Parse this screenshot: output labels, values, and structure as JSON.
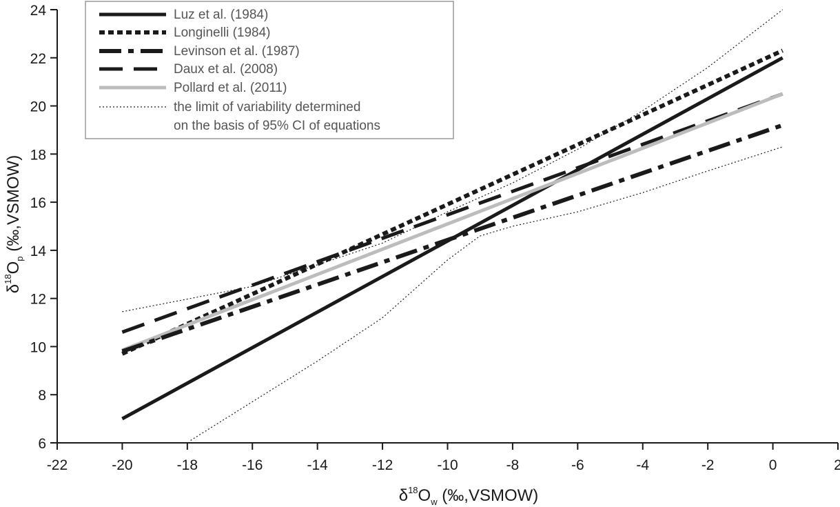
{
  "chart_data": {
    "type": "line",
    "title": "",
    "xlabel": {
      "main": "δ",
      "sup": "18",
      "base": "O",
      "sub": "w",
      "rest": " (‰,VSMOW)"
    },
    "ylabel": {
      "main": "δ",
      "sup": "18",
      "base": "O",
      "sub": "p",
      "rest": " (‰,VSMOW)"
    },
    "xlim": [
      -22,
      2
    ],
    "ylim": [
      6,
      24
    ],
    "xticks": [
      -22,
      -20,
      -18,
      -16,
      -14,
      -12,
      -10,
      -8,
      -6,
      -4,
      -2,
      0,
      2
    ],
    "yticks": [
      6,
      8,
      10,
      12,
      14,
      16,
      18,
      20,
      22,
      24
    ],
    "grid": false,
    "legend": "top-left",
    "series": [
      {
        "name": "Luz et al. (1984)",
        "style": "solid",
        "color": "#1a1a1a",
        "x": [
          -20,
          0.3
        ],
        "y": [
          7.0,
          22.0
        ]
      },
      {
        "name": "Longinelli (1984)",
        "style": "dotted",
        "color": "#1a1a1a",
        "x": [
          -20,
          0.3
        ],
        "y": [
          9.7,
          22.3
        ]
      },
      {
        "name": "Levinson et al. (1987)",
        "style": "dashdot",
        "color": "#1a1a1a",
        "x": [
          -20,
          0.3
        ],
        "y": [
          9.8,
          19.2
        ]
      },
      {
        "name": "Daux et al. (2008)",
        "style": "longdash",
        "color": "#1a1a1a",
        "x": [
          -20,
          0.3
        ],
        "y": [
          10.6,
          20.5
        ]
      },
      {
        "name": "Pollard et al. (2011)",
        "style": "solid-grey",
        "color": "#bcbcbc",
        "x": [
          -20,
          0.3
        ],
        "y": [
          9.85,
          20.5
        ]
      },
      {
        "name": "the limit of variability determined",
        "name_line2": "on the basis of 95% CI of equations",
        "style": "fine-dotted",
        "color": "#1a1a1a",
        "upper": {
          "x": [
            -20,
            -16,
            -12,
            -10,
            -8,
            -6,
            -4,
            -2,
            0.3
          ],
          "y": [
            11.45,
            12.5,
            14.3,
            15.6,
            16.8,
            18.2,
            19.8,
            21.6,
            24.0
          ]
        },
        "lower": {
          "x": [
            -17.9,
            -14,
            -12,
            -10,
            -9,
            -8,
            -6,
            -4,
            -2,
            0.3
          ],
          "y": [
            6.1,
            9.4,
            11.2,
            13.6,
            14.6,
            15.0,
            15.6,
            16.4,
            17.3,
            18.3
          ]
        }
      }
    ]
  }
}
